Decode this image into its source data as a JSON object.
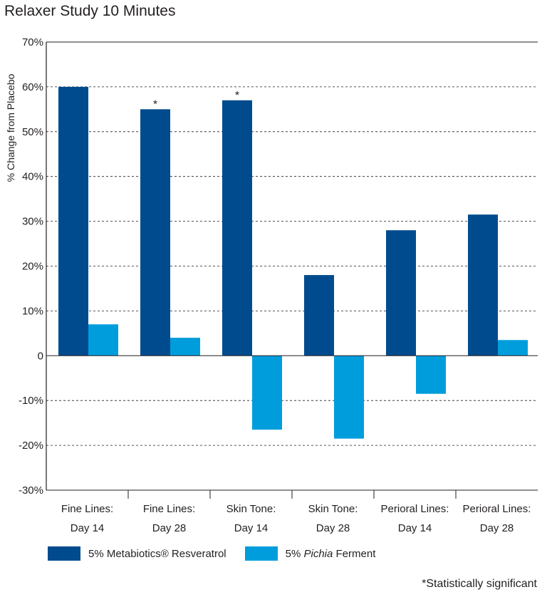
{
  "chart_data": {
    "type": "bar",
    "title": "Relaxer Study 10 Minutes",
    "ylabel": "% Change from Placebo",
    "xlabel": "",
    "ylim": [
      -30,
      70
    ],
    "yticks": [
      70,
      60,
      50,
      40,
      30,
      20,
      10,
      0,
      -10,
      -20,
      -30
    ],
    "ytick_labels": [
      "70%",
      "60%",
      "50%",
      "40%",
      "30%",
      "20%",
      "10%",
      "0",
      "-10%",
      "-20%",
      "-30%"
    ],
    "grid": "horizontal dashed",
    "categories": [
      [
        "Fine Lines:",
        "Day 14"
      ],
      [
        "Fine Lines:",
        "Day 28"
      ],
      [
        "Skin Tone:",
        "Day 14"
      ],
      [
        "Skin Tone:",
        "Day 28"
      ],
      [
        "Perioral Lines:",
        "Day 14"
      ],
      [
        "Perioral Lines:",
        "Day 28"
      ]
    ],
    "series": [
      {
        "name": "5% Metabiotics® Resveratrol",
        "color": "#004b8d",
        "values": [
          60,
          55,
          57,
          18,
          28,
          31.5
        ]
      },
      {
        "name": "5% Pichia Ferment",
        "color": "#009ddc",
        "values": [
          7,
          4,
          -16.5,
          -18.5,
          -8.5,
          3.5
        ]
      }
    ],
    "annotations": [
      {
        "category_index": 1,
        "series_index": 0,
        "text": "*"
      },
      {
        "category_index": 2,
        "series_index": 0,
        "text": "*"
      }
    ],
    "legend": {
      "placement": "bottom-left",
      "item0": {
        "pre": "5% Metabiotics® Resveratrol"
      },
      "item1": {
        "pre": "5% ",
        "em": "Pichia",
        "post": " Ferment"
      }
    },
    "footnote": "*Statistically significant"
  }
}
